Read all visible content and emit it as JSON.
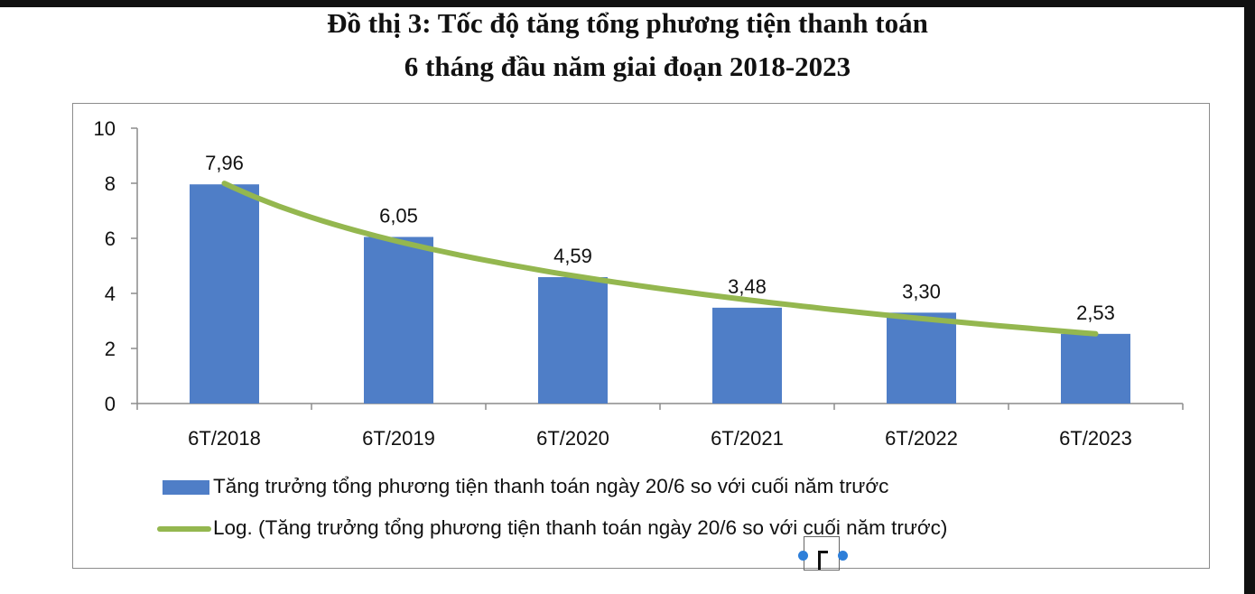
{
  "title_lines": [
    "Đồ thị 3: Tốc độ tăng tổng phương tiện thanh toán",
    "6 tháng đầu năm giai đoạn 2018-2023"
  ],
  "chart_data": {
    "type": "bar",
    "categories": [
      "6T/2018",
      "6T/2019",
      "6T/2020",
      "6T/2021",
      "6T/2022",
      "6T/2023"
    ],
    "values": [
      7.96,
      6.05,
      4.59,
      3.48,
      3.3,
      2.53
    ],
    "value_labels": [
      "7,96",
      "6,05",
      "4,59",
      "3,48",
      "3,30",
      "2,53"
    ],
    "ylim": [
      0,
      10
    ],
    "yticks": [
      0,
      2,
      4,
      6,
      8,
      10
    ],
    "bar_color": "#4f7ec7",
    "trendline": {
      "type": "logarithmic",
      "color": "#94b74f"
    },
    "legend_position": "bottom",
    "grid": false,
    "legend": [
      "Tăng trưởng tổng phương tiện thanh toán ngày 20/6 so với cuối năm trước",
      "Log. (Tăng trưởng tổng phương tiện thanh toán ngày 20/6 so với cuối năm trước)"
    ]
  }
}
